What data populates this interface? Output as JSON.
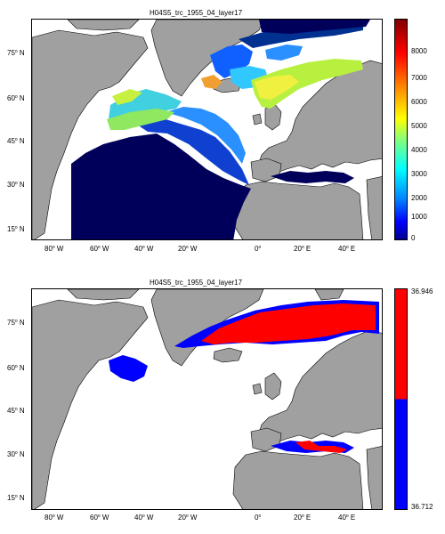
{
  "panels": [
    {
      "title": "H04S5_trc_1955_04_layer17",
      "colorbar": {
        "type": "jet",
        "ticks": [
          "8000",
          "7000",
          "6000",
          "5000",
          "4000",
          "3000",
          "2000",
          "1000",
          "0"
        ]
      }
    },
    {
      "title": "H04S5_trc_1955_04_layer17",
      "colorbar": {
        "type": "two-color",
        "colors": [
          "#ff0000",
          "#0000ff"
        ],
        "ticks": [
          "36.946",
          "36.712"
        ]
      }
    }
  ],
  "lat_ticks": [
    "75",
    "60",
    "45",
    "30",
    "15"
  ],
  "lat_suffix": "N",
  "lon_ticks": [
    {
      "v": "80",
      "s": "W"
    },
    {
      "v": "60",
      "s": "W"
    },
    {
      "v": "40",
      "s": "W"
    },
    {
      "v": "20",
      "s": "W"
    },
    {
      "v": "0",
      "s": ""
    },
    {
      "v": "20",
      "s": "E"
    },
    {
      "v": "40",
      "s": "E"
    }
  ],
  "colors": {
    "land": "#a0a0a0",
    "ocean": "#ffffff",
    "deep": "#00005a",
    "red": "#ff0000",
    "blue": "#0000ff"
  }
}
